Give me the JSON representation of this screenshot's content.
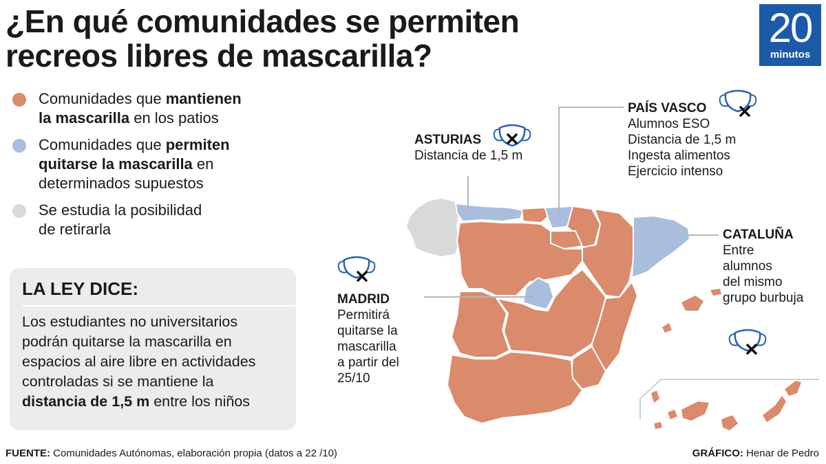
{
  "title": {
    "line1": "¿En qué comunidades se permiten",
    "line2": "recreos libres de mascarilla?"
  },
  "logo": {
    "number": "20",
    "word": "minutos",
    "color": "#1c5aa8"
  },
  "colors": {
    "keep_mask": "#d98b6c",
    "allow_removal": "#a9bedd",
    "studying": "#d9d9db",
    "box_bg": "#ececec"
  },
  "legend": {
    "keep": {
      "pre": "Comunidades que ",
      "bold": "mantienen",
      "bold2": "la mascarilla",
      "post": " en los patios"
    },
    "allow": {
      "pre": "Comunidades que ",
      "bold": "permiten",
      "bold2": "quitarse la mascarilla",
      "post": " en",
      "post2": "determinados supuestos"
    },
    "study": {
      "line1": "Se estudia la posibilidad",
      "line2": "de retirarla"
    }
  },
  "law": {
    "title": "LA LEY DICE:",
    "line1": "Los estudiantes no universitarios",
    "line2": "podrán quitarse la mascarilla en",
    "line3": "espacios al aire libre en actividades",
    "line4": "controladas si se mantiene la",
    "bold": "distancia de 1,5 m",
    "line5_post": " entre los niños"
  },
  "regions": {
    "asturias": {
      "head": "ASTURIAS",
      "lines": [
        "Distancia de 1,5 m"
      ]
    },
    "pais_vasco": {
      "head": "PAÍS VASCO",
      "lines": [
        "Alumnos ESO",
        "Distancia de 1,5 m",
        "Ingesta alimentos",
        "Ejercicio intenso"
      ]
    },
    "cataluna": {
      "head": "CATALUÑA",
      "lines": [
        "Entre",
        "alumnos",
        "del mismo",
        "grupo burbuja"
      ]
    },
    "madrid": {
      "head": "MADRID",
      "lines": [
        "Permitirá",
        "quitarse la",
        "mascarilla",
        "a partir del",
        "25/10"
      ]
    }
  },
  "footer": {
    "source_label": "FUENTE:",
    "source_text": " Comunidades Autónomas, elaboración propia (datos a 22 /10)",
    "credit_label": "GRÁFICO:",
    "credit_text": " Henar de Pedro"
  }
}
